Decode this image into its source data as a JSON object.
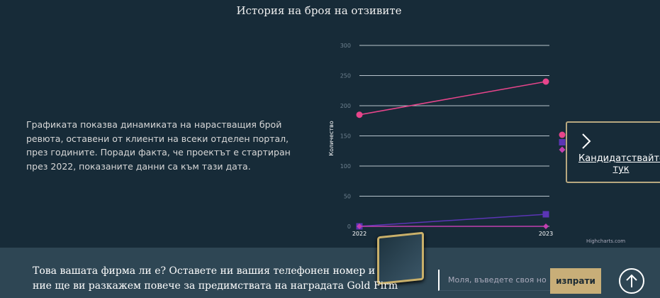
{
  "title": "История на броя на отзивите",
  "description": "Графиката показва динамиката на нарастващия брой ревюта, оставени от клиенти на всеки отделен портал, през годините. Поради факта, че проектът е стартиран през 2022, показаните данни са към тази дата.",
  "apply_button": {
    "label": "Кандидатствайте тук",
    "icon": "chevron-right-icon"
  },
  "bottom_bar": {
    "cta_line1": "Това вашата фирма ли е? Оставете ни вашия телефонен номер и",
    "cta_line2": "ние ще ви разкажем повече за предимствата на наградата Gold Firm",
    "phone_placeholder": "Моля, въведете своя но",
    "send_label": "изпрати",
    "scroll_top_icon": "arrow-up-circle-icon"
  },
  "chart_data": {
    "type": "line",
    "categories": [
      "2022",
      "2023"
    ],
    "ylabel": "Количество",
    "ylim": [
      0,
      300
    ],
    "yticks": [
      "0",
      "50",
      "100",
      "150",
      "200",
      "250",
      "300"
    ],
    "grid": true,
    "credits": "Highcharts.com",
    "series": [
      {
        "values": [
          185,
          240
        ],
        "color": "#e8458b",
        "marker": "circle"
      },
      {
        "values": [
          0,
          20
        ],
        "color": "#5b35b5",
        "marker": "square"
      },
      {
        "values": [
          0,
          0
        ],
        "color": "#c23fb0",
        "marker": "diamond"
      }
    ]
  }
}
